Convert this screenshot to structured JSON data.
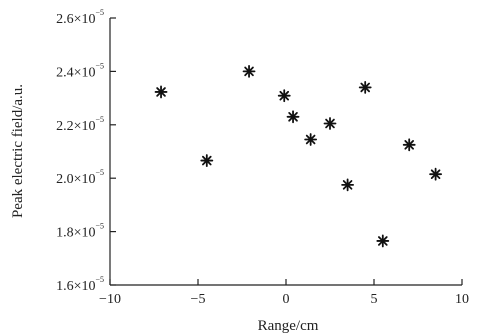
{
  "chart_data": {
    "type": "scatter",
    "title": "",
    "xlabel": "Range/cm",
    "ylabel": "Peak electric field/a.u.",
    "xlim": [
      -10,
      10
    ],
    "ylim": [
      1.6e-05,
      2.6e-05
    ],
    "xticks": [
      -10,
      -5,
      0,
      5,
      10
    ],
    "yticks": [
      1.6e-05,
      1.8e-05,
      2e-05,
      2.2e-05,
      2.4e-05,
      2.6e-05
    ],
    "xtick_labels": [
      "−10",
      "−5",
      "0",
      "5",
      "10"
    ],
    "ytick_labels": [
      {
        "mantissa": "1.6×10",
        "exponent": "−5"
      },
      {
        "mantissa": "1.8×10",
        "exponent": "−5"
      },
      {
        "mantissa": "2.0×10",
        "exponent": "−5"
      },
      {
        "mantissa": "2.2×10",
        "exponent": "−5"
      },
      {
        "mantissa": "2.4×10",
        "exponent": "−5"
      },
      {
        "mantissa": "2.6×10",
        "exponent": "−5"
      }
    ],
    "marker": "asterisk",
    "grid": false,
    "series": [
      {
        "x": [
          -7.1,
          -4.5,
          -2.1,
          -0.1,
          0.4,
          1.4,
          2.5,
          3.5,
          4.5,
          5.5,
          7.0,
          8.5
        ],
        "y": [
          2.323e-05,
          2.066e-05,
          2.4e-05,
          2.309e-05,
          2.23e-05,
          2.145e-05,
          2.205e-05,
          1.975e-05,
          2.34e-05,
          1.765e-05,
          2.125e-05,
          2.015e-05
        ]
      }
    ]
  }
}
